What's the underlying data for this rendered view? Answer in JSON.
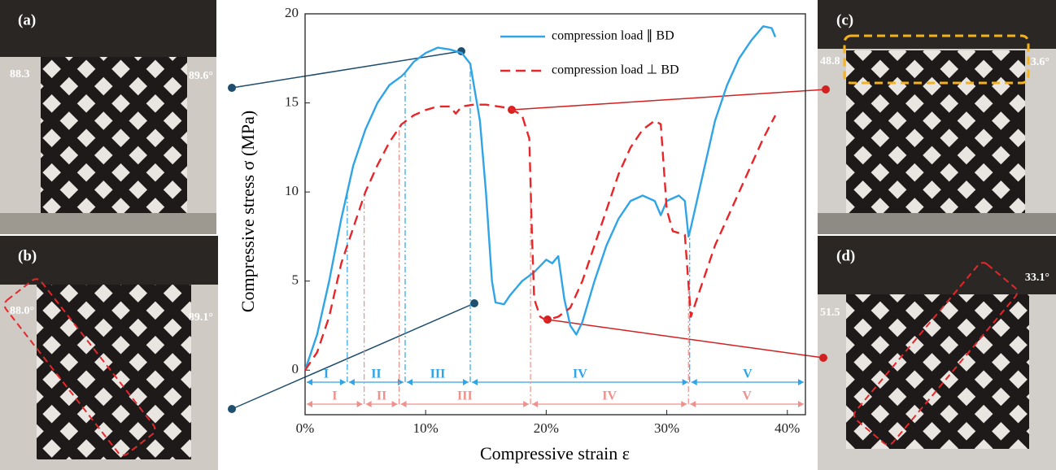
{
  "chart_data": {
    "type": "line",
    "y_label": "Compressive stress σ (MPa)",
    "x_label": "Compressive strain ε",
    "xlim": [
      0,
      41.5
    ],
    "ylim": [
      -2.5,
      20
    ],
    "xticks": [
      {
        "value": 0,
        "label": "0%"
      },
      {
        "value": 10,
        "label": "10%"
      },
      {
        "value": 20,
        "label": "20%"
      },
      {
        "value": 30,
        "label": "30%"
      },
      {
        "value": 40,
        "label": "40%"
      }
    ],
    "yticks": [
      0,
      5,
      10,
      15,
      20
    ],
    "legend": "upper right",
    "series": [
      {
        "name": "compression load ∥ BD",
        "color": "#2fa4e7",
        "dash": "solid",
        "x": [
          0,
          1,
          2,
          3,
          4,
          5,
          6,
          7,
          8,
          8.3,
          9,
          10,
          11,
          12,
          13,
          13.7,
          14.5,
          15,
          15.5,
          15.8,
          16.5,
          17,
          18,
          19,
          20,
          20.5,
          21,
          21.5,
          22,
          22.5,
          23,
          24,
          25,
          26,
          27,
          28,
          29,
          29.5,
          30,
          31,
          31.5,
          31.8,
          32,
          33,
          34,
          35,
          36,
          37,
          38,
          38.7,
          39
        ],
        "values": [
          0,
          2,
          5,
          8.5,
          11.5,
          13.5,
          15,
          16,
          16.5,
          16.7,
          17.3,
          17.8,
          18.1,
          18,
          17.8,
          17.2,
          14,
          10,
          5,
          3.8,
          3.7,
          4.2,
          5,
          5.5,
          6.2,
          6,
          6.4,
          4,
          2.5,
          2,
          2.7,
          5,
          7,
          8.5,
          9.5,
          9.8,
          9.5,
          8.7,
          9.5,
          9.8,
          9.5,
          7.5,
          8,
          11,
          14,
          16,
          17.5,
          18.5,
          19.3,
          19.2,
          18.7
        ]
      },
      {
        "name": "compression load ⊥ BD",
        "color": "#e8262a",
        "dash": "dashed",
        "x": [
          0,
          1,
          2,
          3,
          4,
          5,
          6,
          7,
          8,
          9,
          10,
          11,
          12,
          12.5,
          13,
          14,
          15,
          16,
          17,
          18,
          18.6,
          18.8,
          19,
          19.5,
          20,
          21,
          22,
          23,
          24,
          25,
          26,
          27,
          28,
          29,
          29.5,
          30,
          30.5,
          31.5,
          32,
          33,
          34,
          35,
          36,
          37,
          38,
          39
        ],
        "values": [
          0,
          1,
          3,
          6,
          8,
          10,
          11.5,
          12.8,
          13.8,
          14.3,
          14.6,
          14.8,
          14.8,
          14.4,
          14.8,
          14.9,
          14.9,
          14.8,
          14.7,
          14.3,
          13,
          8,
          4,
          3,
          2.8,
          3,
          3.5,
          5,
          7,
          9,
          11,
          12.5,
          13.5,
          14,
          13.8,
          9,
          7.8,
          7.6,
          3,
          5,
          7,
          8.5,
          10,
          11.5,
          13,
          14.3
        ]
      }
    ],
    "regions": [
      {
        "color": "#2fa4e7",
        "bounds": [
          3.5,
          8.3,
          13.7,
          31.9
        ],
        "labels": [
          "I",
          "II",
          "III",
          "IV",
          "V"
        ]
      },
      {
        "color": "#f0908a",
        "bounds": [
          4.9,
          7.8,
          18.7,
          31.8
        ],
        "labels": [
          "I",
          "II",
          "III",
          "IV",
          "V"
        ]
      }
    ]
  },
  "panels": [
    {
      "tag": "(a)",
      "left_angle": "88.3",
      "right_angle": "89.6°"
    },
    {
      "tag": "(b)",
      "left_angle": "88.0°",
      "right_angle": "89.1°"
    },
    {
      "tag": "(c)",
      "left_angle": "48.8",
      "right_angle": "3.6°"
    },
    {
      "tag": "(d)",
      "left_angle": "51.5",
      "right_angle": "33.1°"
    }
  ]
}
